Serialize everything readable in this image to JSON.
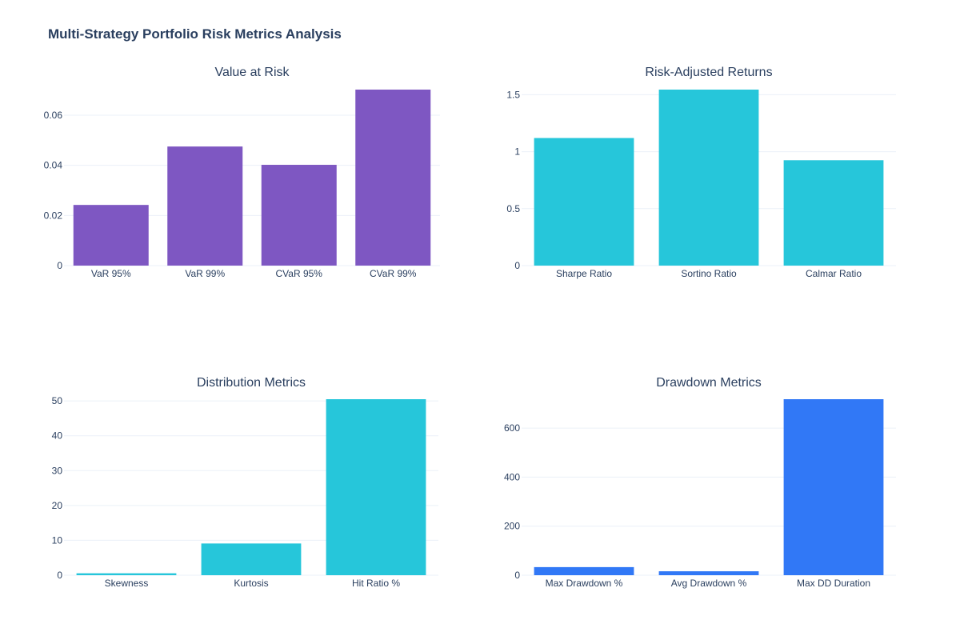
{
  "title": "Multi-Strategy Portfolio Risk Metrics Analysis",
  "chart_data": [
    {
      "type": "bar",
      "title": "Value at Risk",
      "categories": [
        "VaR 95%",
        "VaR 99%",
        "CVaR 95%",
        "CVaR 99%"
      ],
      "values": [
        0.0242,
        0.0475,
        0.0402,
        0.0702
      ],
      "ylim": [
        0,
        0.0702
      ],
      "yticks": [
        0,
        0.02,
        0.04,
        0.06
      ],
      "ytick_labels": [
        "0",
        "0.02",
        "0.04",
        "0.06"
      ],
      "color": "#7e57c2",
      "grid": true
    },
    {
      "type": "bar",
      "title": "Risk-Adjusted Returns",
      "categories": [
        "Sharpe Ratio",
        "Sortino Ratio",
        "Calmar Ratio"
      ],
      "values": [
        1.12,
        1.545,
        0.925
      ],
      "ylim": [
        0,
        1.545
      ],
      "yticks": [
        0,
        0.5,
        1,
        1.5
      ],
      "ytick_labels": [
        "0",
        "0.5",
        "1",
        "1.5"
      ],
      "color": "#26c6da",
      "grid": true
    },
    {
      "type": "bar",
      "title": "Distribution Metrics",
      "categories": [
        "Skewness",
        "Kurtosis",
        "Hit Ratio %"
      ],
      "values": [
        0.55,
        9.1,
        50.5
      ],
      "ylim": [
        0,
        50.5
      ],
      "yticks": [
        0,
        10,
        20,
        30,
        40,
        50
      ],
      "ytick_labels": [
        "0",
        "10",
        "20",
        "30",
        "40",
        "50"
      ],
      "color": "#26c6da",
      "grid": true
    },
    {
      "type": "bar",
      "title": "Drawdown Metrics",
      "categories": [
        "Max Drawdown %",
        "Avg Drawdown %",
        "Max DD Duration"
      ],
      "values": [
        33,
        16,
        718
      ],
      "ylim": [
        0,
        718
      ],
      "yticks": [
        0,
        200,
        400,
        600
      ],
      "ytick_labels": [
        "0",
        "200",
        "400",
        "600"
      ],
      "color": "#3178f6",
      "grid": true
    }
  ]
}
